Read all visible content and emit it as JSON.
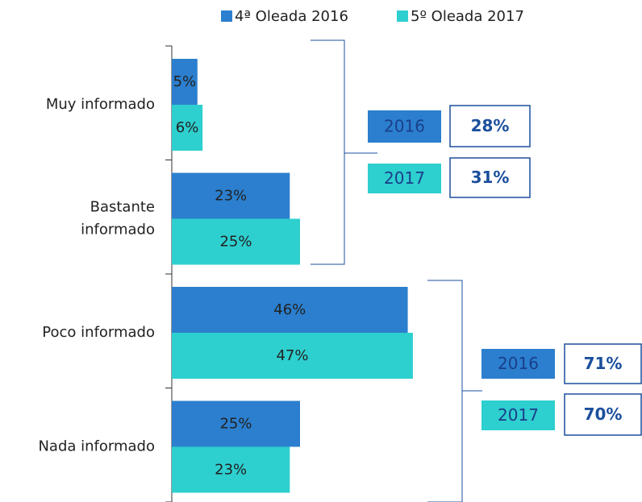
{
  "chart_data": {
    "type": "bar",
    "orientation": "horizontal",
    "categories": [
      "Muy informado",
      "Bastante informado",
      "Poco informado",
      "Nada informado"
    ],
    "series": [
      {
        "name": "4ª Oleada 2016",
        "color": "#2b7fce",
        "values": [
          5,
          23,
          46,
          25
        ],
        "value_labels": [
          "5%",
          "23%",
          "46%",
          "25%"
        ]
      },
      {
        "name": "5º Oleada 2017",
        "color": "#2ecfcf",
        "values": [
          6,
          25,
          47,
          23
        ],
        "value_labels": [
          "6%",
          "25%",
          "47%",
          "23%"
        ]
      }
    ],
    "xlim": [
      0,
      50
    ],
    "legend": "top",
    "annotations": [
      {
        "years": [
          "2016",
          "2017"
        ],
        "totals": [
          28,
          31
        ],
        "total_labels": [
          "28%",
          "31%"
        ]
      },
      {
        "years": [
          "2016",
          "2017"
        ],
        "totals": [
          71,
          70
        ],
        "total_labels": [
          "71%",
          "70%"
        ]
      }
    ]
  }
}
